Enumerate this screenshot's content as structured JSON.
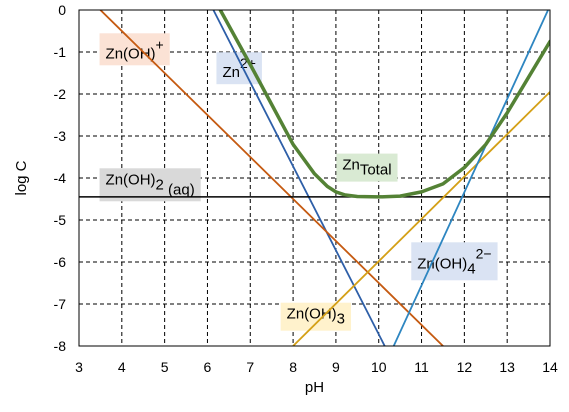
{
  "chart_data": {
    "type": "line",
    "title": "",
    "xlabel": "pH",
    "ylabel": "log C",
    "xlim": [
      3,
      14
    ],
    "ylim": [
      -8,
      0
    ],
    "x_ticks": [
      "3",
      "4",
      "5",
      "6",
      "7",
      "8",
      "9",
      "10",
      "11",
      "12",
      "13",
      "14"
    ],
    "y_ticks": [
      "0",
      "-1",
      "-2",
      "-3",
      "-4",
      "-5",
      "-6",
      "-7",
      "-8"
    ],
    "grid": "dashed",
    "series": [
      {
        "id": "zn2",
        "color": "#2e5fa8",
        "width": 1.8,
        "x": [
          6.14,
          10.14
        ],
        "y": [
          0,
          -8
        ]
      },
      {
        "id": "znoh",
        "color": "#c55a11",
        "width": 1.8,
        "x": [
          3.5,
          11.5
        ],
        "y": [
          0,
          -8
        ]
      },
      {
        "id": "znoh2",
        "color": "#000000",
        "width": 1.5,
        "x": [
          3,
          14
        ],
        "y": [
          -4.45,
          -4.45
        ]
      },
      {
        "id": "znoh3",
        "color": "#d4a017",
        "width": 1.8,
        "x": [
          8,
          14
        ],
        "y": [
          -8,
          -1.95
        ]
      },
      {
        "id": "znoh4",
        "color": "#2e86c1",
        "width": 1.8,
        "x": [
          10.35,
          14
        ],
        "y": [
          -8,
          0.1
        ]
      },
      {
        "id": "total",
        "color": "#548235",
        "width": 3.5,
        "x": [
          6.3,
          7,
          7.5,
          8,
          8.5,
          8.8,
          9,
          9.2,
          9.5,
          10,
          10.5,
          11,
          11.5,
          12,
          12.5,
          13,
          13.5,
          14
        ],
        "y": [
          0,
          -1.3,
          -2.25,
          -3.2,
          -3.9,
          -4.2,
          -4.33,
          -4.4,
          -4.44,
          -4.45,
          -4.43,
          -4.33,
          -4.14,
          -3.75,
          -3.2,
          -2.45,
          -1.6,
          -0.75
        ]
      }
    ],
    "annotations": [
      {
        "id": "znoh-label",
        "base": "Zn(OH)",
        "sup": "+",
        "sub": "",
        "suffix": "",
        "bg": "#fbe2d5",
        "x": 3.62,
        "y": -1.15
      },
      {
        "id": "zn2-label",
        "base": "Zn",
        "sup": "2+",
        "sub": "",
        "suffix": "",
        "bg": "#dae3f3",
        "x": 6.35,
        "y": -1.6
      },
      {
        "id": "total-label",
        "base": "Zn",
        "sup": "",
        "sub": "Total",
        "suffix": "",
        "bg": "#d9ead3",
        "x": 9.15,
        "y": -3.8
      },
      {
        "id": "znoh2-label",
        "base": "Zn(OH)",
        "sup": "",
        "sub": "2",
        "suffix": " (aq)",
        "bg": "#d9d9d9",
        "x": 3.62,
        "y": -4.15
      },
      {
        "id": "znoh4-label",
        "base": "Zn(OH)",
        "sup": "2−",
        "sub": "4",
        "suffix": "",
        "bg": "#dae3f3",
        "x": 10.9,
        "y": -6.15
      },
      {
        "id": "znoh3-label",
        "base": "Zn(OH)",
        "sup": "",
        "sub": "3",
        "suffix": "",
        "bg": "#fff2cc",
        "x": 7.85,
        "y": -7.35
      }
    ]
  }
}
